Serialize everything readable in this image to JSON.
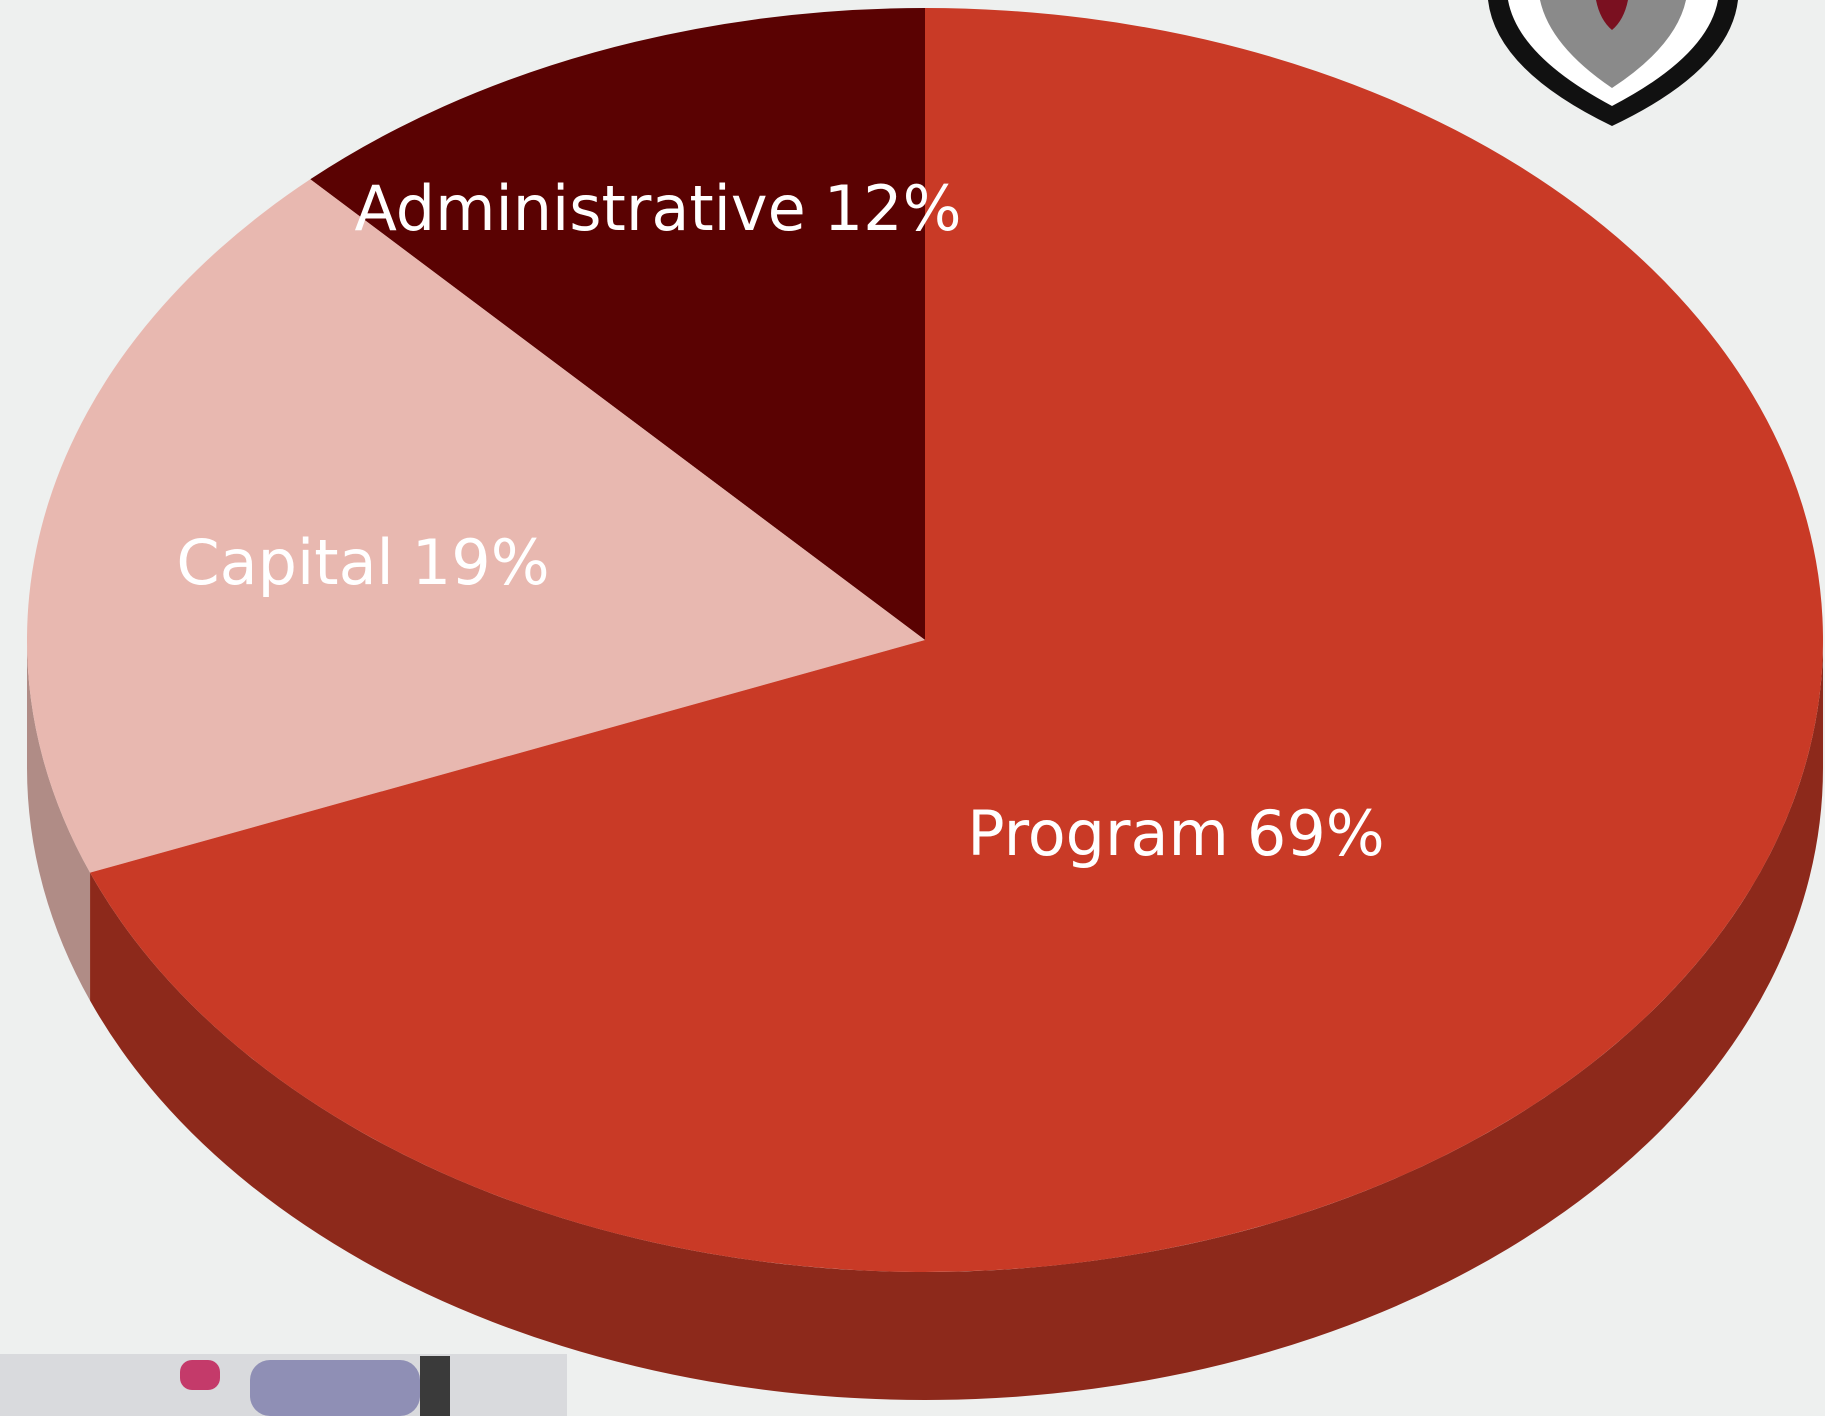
{
  "chart_data": {
    "type": "pie",
    "categories": [
      "Administrative",
      "Capital",
      "Program"
    ],
    "values": [
      12,
      19,
      69
    ],
    "value_labels": [
      "12%",
      "19%",
      "69%"
    ],
    "colors": [
      "#5a0202",
      "#e8b8b0",
      "#c93a26"
    ]
  }
}
